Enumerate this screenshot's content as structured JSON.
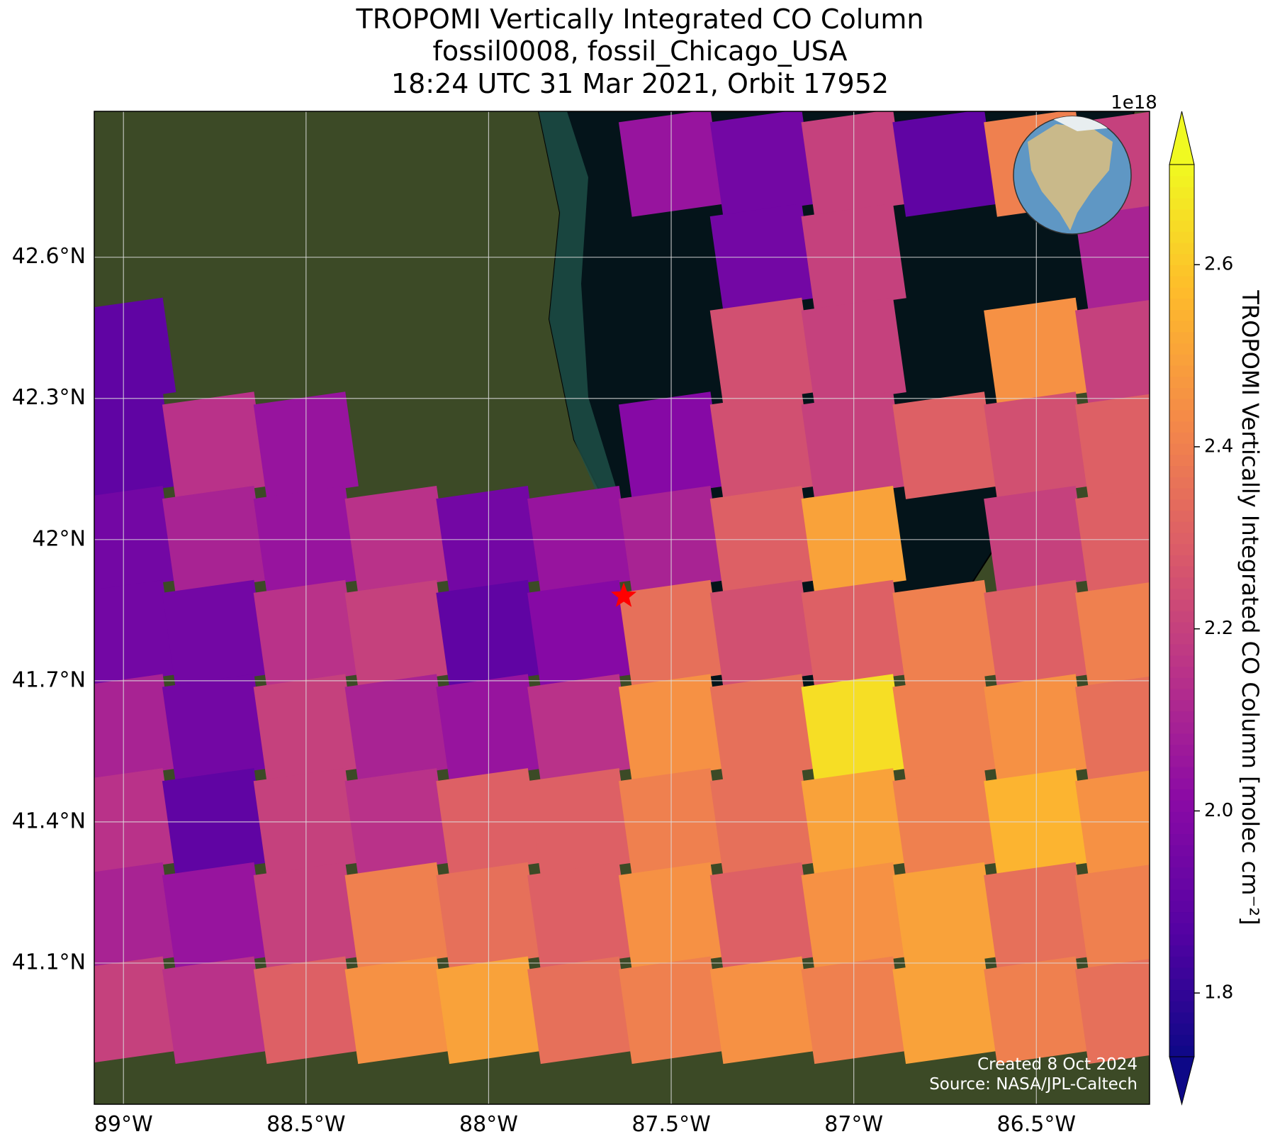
{
  "chart_data": {
    "type": "map",
    "title": [
      "TROPOMI Vertically Integrated CO Column",
      "fossil0008, fossil_Chicago_USA",
      "18:24 UTC 31 Mar 2021, Orbit 17952"
    ],
    "xlim": [
      -89.08,
      -86.19
    ],
    "ylim": [
      40.8,
      42.91
    ],
    "xticks": [
      {
        "value": -89,
        "label": "89°W"
      },
      {
        "value": -88.5,
        "label": "88.5°W"
      },
      {
        "value": -88,
        "label": "88°W"
      },
      {
        "value": -87.5,
        "label": "87.5°W"
      },
      {
        "value": -87,
        "label": "87°W"
      },
      {
        "value": -86.5,
        "label": "86.5°W"
      }
    ],
    "yticks": [
      {
        "value": 41.1,
        "label": "41.1°N"
      },
      {
        "value": 41.4,
        "label": "41.4°N"
      },
      {
        "value": 41.7,
        "label": "41.7°N"
      },
      {
        "value": 42,
        "label": "42°N"
      },
      {
        "value": 42.3,
        "label": "42.3°N"
      },
      {
        "value": 42.6,
        "label": "42.6°N"
      }
    ],
    "grid": true,
    "colorbar": {
      "label": "TROPOMI Vertically Integrated CO Column [molec cm⁻²]",
      "offset_label": "1e18",
      "colormap": "plasma",
      "clim": [
        1.73,
        2.71
      ],
      "ticks": [
        1.8,
        {
          "value": 2.0,
          "label": "2.0"
        },
        2.2,
        2.4,
        2.6
      ]
    },
    "co": {
      "lons": [
        -89.0,
        -88.75,
        -88.5,
        -88.25,
        -88.0,
        -87.75,
        -87.5,
        -87.25,
        -87.0,
        -86.75,
        -86.5,
        -86.25
      ],
      "lats": [
        42.8,
        42.6,
        42.4,
        42.2,
        42.0,
        41.8,
        41.6,
        41.4,
        41.2,
        41.0
      ],
      "values": [
        [
          null,
          null,
          null,
          null,
          null,
          null,
          2.05,
          1.95,
          2.2,
          1.9,
          2.4,
          2.2
        ],
        [
          null,
          null,
          null,
          null,
          null,
          null,
          null,
          1.95,
          2.2,
          null,
          null,
          2.1
        ],
        [
          1.9,
          null,
          null,
          null,
          null,
          null,
          null,
          2.25,
          2.2,
          null,
          2.45,
          2.2
        ],
        [
          1.9,
          2.15,
          2.05,
          null,
          null,
          null,
          2.0,
          2.25,
          2.2,
          2.3,
          2.25,
          2.3
        ],
        [
          1.95,
          2.1,
          2.05,
          2.15,
          1.95,
          2.05,
          2.1,
          2.3,
          2.5,
          null,
          2.2,
          2.3
        ],
        [
          1.95,
          1.95,
          2.15,
          2.2,
          1.9,
          2.0,
          2.35,
          2.25,
          2.3,
          2.4,
          2.3,
          2.4
        ],
        [
          2.1,
          1.95,
          2.2,
          2.1,
          2.05,
          2.15,
          2.45,
          2.35,
          2.65,
          2.4,
          2.45,
          2.35
        ],
        [
          2.15,
          1.9,
          2.2,
          2.15,
          2.3,
          2.3,
          2.4,
          2.35,
          2.5,
          2.4,
          2.55,
          2.45
        ],
        [
          2.1,
          2.05,
          2.2,
          2.4,
          2.35,
          2.3,
          2.45,
          2.3,
          2.45,
          2.5,
          2.35,
          2.4
        ],
        [
          2.2,
          2.15,
          2.3,
          2.45,
          2.5,
          2.35,
          2.4,
          2.45,
          2.4,
          2.5,
          2.4,
          2.35
        ]
      ]
    },
    "site": {
      "lon": -87.63,
      "lat": 41.88
    },
    "annotations": [
      "Created 8 Oct 2024",
      "Source: NASA/JPL-Caltech"
    ]
  }
}
